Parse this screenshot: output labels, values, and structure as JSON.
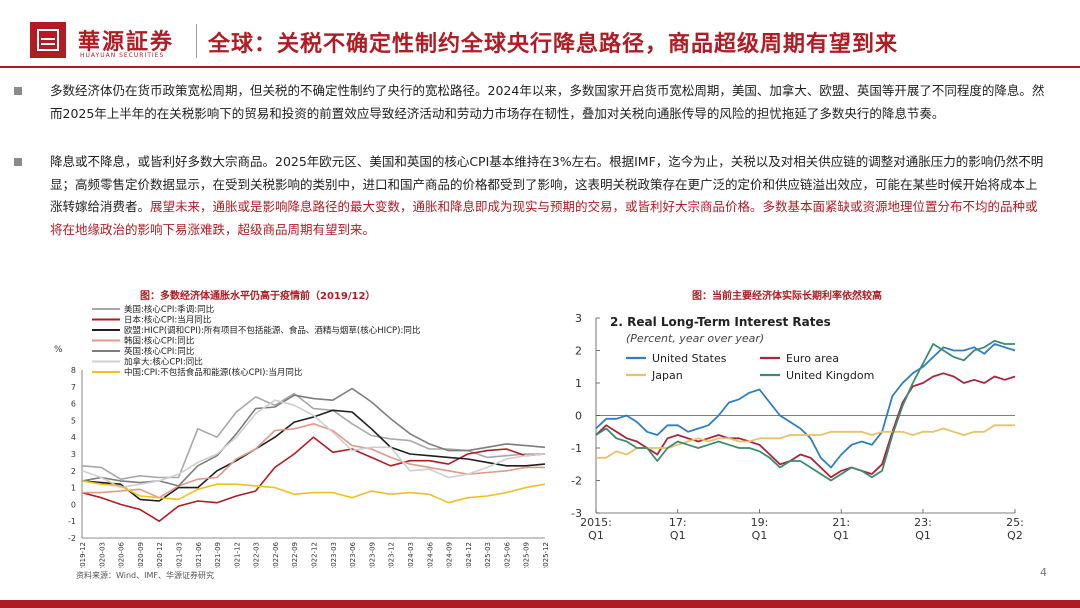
{
  "header": {
    "brand": "華源証券",
    "brand_en": "HUAYUAN SECURITIES",
    "title": "全球：关税不确定性制约全球央行降息路径，商品超级周期有望到来"
  },
  "bullets": [
    {
      "text": "多数经济体仍在货币政策宽松周期，但关税的不确定性制约了央行的宽松路径。2024年以来，多数国家开启货币宽松周期，美国、加拿大、欧盟、英国等开展了不同程度的降息。然而2025年上半年的在关税影响下的贸易和投资的前置效应导致经济活动和劳动力市场存在韧性，叠加对关税向通胀传导的风险的担忧拖延了多数央行的降息节奏。",
      "highlight": ""
    },
    {
      "text": "降息或不降息，或皆利好多数大宗商品。2025年欧元区、美国和英国的核心CPI基本维持在3%左右。根据IMF，迄今为止，关税以及对相关供应链的调整对通胀压力的影响仍然不明显；高频零售定价数据显示，在受到关税影响的类别中，进口和国产商品的价格都受到了影响，这表明关税政策存在更广泛的定价和供应链溢出效应，可能在某些时候开始将成本上涨转嫁给消费者。",
      "highlight": "展望未来，通胀或是影响降息路径的最大变数，通胀和降息即成为现实与预期的交易，或皆利好大宗商品价格。多数基本面紧缺或资源地理位置分布不均的品种或将在地缘政治的影响下易涨难跌，超级商品周期有望到来。"
    }
  ],
  "chart1_title": "图：多数经济体通胀水平仍高于疫情前（2019/12）",
  "chart2_title": "图：当前主要经济体实际长期利率依然较高",
  "source": "资料来源：Wind、IMF、华源证券研究",
  "page_number": "4",
  "chart_data": [
    {
      "type": "line",
      "title": "多数经济体通胀水平仍高于疫情前（2019/12）",
      "ylabel": "%",
      "ylim": [
        -2,
        8
      ],
      "yticks": [
        "-2",
        "-1",
        "0",
        "1",
        "2",
        "3",
        "4",
        "5",
        "6",
        "7",
        "8"
      ],
      "xticks": [
        "2019-12",
        "2020-03",
        "2020-06",
        "2020-09",
        "2020-12",
        "2021-03",
        "2021-06",
        "2021-09",
        "2021-12",
        "2022-03",
        "2022-06",
        "2022-09",
        "2022-12",
        "2023-03",
        "2023-06",
        "2023-09",
        "2023-12",
        "2024-03",
        "2024-06",
        "2024-09",
        "2024-12",
        "2025-03",
        "2025-06",
        "2025-09",
        "2025-12"
      ],
      "legend_position": "top-left",
      "series": [
        {
          "name": "美国:核心CPI:季调:同比",
          "color": "#a8a8a8",
          "values": [
            2.3,
            2.2,
            1.5,
            1.7,
            1.6,
            1.6,
            4.5,
            4.0,
            5.5,
            6.4,
            5.9,
            6.6,
            5.7,
            5.6,
            4.8,
            4.1,
            3.9,
            3.8,
            3.3,
            3.3,
            3.2,
            2.8,
            2.9,
            3.0,
            3.0
          ]
        },
        {
          "name": "日本:核心CPI:当月同比",
          "color": "#b01c24",
          "values": [
            0.7,
            0.4,
            0.0,
            -0.3,
            -1.0,
            -0.1,
            0.2,
            0.1,
            0.5,
            0.8,
            2.2,
            3.0,
            4.0,
            3.1,
            3.3,
            2.8,
            2.3,
            2.6,
            2.6,
            2.4,
            3.0,
            3.2,
            3.3,
            2.9,
            3.0
          ]
        },
        {
          "name": "欧盟:HICP(调和CPI):所有项目不包括能源、食品、酒精与烟草(核心HICP):同比",
          "color": "#1f1f1f",
          "values": [
            1.4,
            1.3,
            1.2,
            0.3,
            0.2,
            1.0,
            1.0,
            2.0,
            2.6,
            3.3,
            4.0,
            4.9,
            5.2,
            5.6,
            5.5,
            4.5,
            3.4,
            3.0,
            2.9,
            2.8,
            2.7,
            2.5,
            2.3,
            2.3,
            2.4
          ]
        },
        {
          "name": "韩国:核心CPI:同比",
          "color": "#e09a8a",
          "values": [
            0.7,
            0.7,
            0.8,
            0.9,
            0.4,
            1.1,
            1.5,
            1.6,
            2.7,
            3.3,
            4.4,
            4.5,
            4.8,
            4.4,
            3.5,
            3.3,
            2.8,
            2.4,
            2.2,
            2.0,
            1.8,
            1.9,
            2.0,
            2.2,
            2.2
          ]
        },
        {
          "name": "英国:核心CPI:同比",
          "color": "#7d7d7d",
          "values": [
            1.4,
            1.6,
            1.4,
            1.3,
            1.4,
            1.1,
            2.3,
            2.9,
            4.2,
            5.7,
            5.8,
            6.5,
            6.3,
            6.2,
            6.9,
            6.1,
            5.1,
            4.2,
            3.6,
            3.2,
            3.2,
            3.4,
            3.6,
            3.5,
            3.4
          ]
        },
        {
          "name": "加拿大:核心CPI:同比",
          "color": "#cfcfcf",
          "values": [
            2.0,
            1.6,
            1.0,
            1.2,
            1.4,
            1.8,
            2.5,
            3.0,
            4.0,
            5.4,
            6.2,
            5.9,
            5.3,
            4.3,
            3.2,
            3.4,
            3.4,
            2.0,
            2.1,
            1.6,
            1.8,
            2.2,
            2.7,
            2.9,
            3.0
          ]
        },
        {
          "name": "中国:CPI:不包括食品和能源(核心CPI):当月同比",
          "color": "#f0c020",
          "values": [
            1.4,
            1.2,
            1.1,
            0.5,
            0.4,
            0.3,
            0.9,
            1.2,
            1.2,
            1.1,
            1.0,
            0.6,
            0.7,
            0.7,
            0.4,
            0.8,
            0.6,
            0.7,
            0.6,
            0.1,
            0.4,
            0.5,
            0.7,
            1.0,
            1.2
          ]
        }
      ]
    },
    {
      "type": "line",
      "title": "2. Real Long-Term Interest Rates",
      "subtitle": "(Percent, year over year)",
      "ylim": [
        -3,
        3
      ],
      "yticks": [
        "-3",
        "-2",
        "-1",
        "0",
        "1",
        "2",
        "3"
      ],
      "xticks": [
        "2015:\nQ1",
        "17:\nQ1",
        "19:\nQ1",
        "21:\nQ1",
        "23:\nQ1",
        "25:\nQ2"
      ],
      "x": [
        "2015Q1",
        "2015Q2",
        "2015Q3",
        "2015Q4",
        "2016Q1",
        "2016Q2",
        "2016Q3",
        "2016Q4",
        "2017Q1",
        "2017Q2",
        "2017Q3",
        "2017Q4",
        "2018Q1",
        "2018Q2",
        "2018Q3",
        "2018Q4",
        "2019Q1",
        "2019Q2",
        "2019Q3",
        "2019Q4",
        "2020Q1",
        "2020Q2",
        "2020Q3",
        "2020Q4",
        "2021Q1",
        "2021Q2",
        "2021Q3",
        "2021Q4",
        "2022Q1",
        "2022Q2",
        "2022Q3",
        "2022Q4",
        "2023Q1",
        "2023Q2",
        "2023Q3",
        "2023Q4",
        "2024Q1",
        "2024Q2",
        "2024Q3",
        "2024Q4",
        "2025Q1",
        "2025Q2"
      ],
      "series": [
        {
          "name": "United States",
          "color": "#2d7ec4",
          "values": [
            -0.4,
            -0.1,
            -0.1,
            0.0,
            -0.2,
            -0.5,
            -0.6,
            -0.3,
            -0.3,
            -0.5,
            -0.4,
            -0.3,
            0.0,
            0.4,
            0.5,
            0.7,
            0.8,
            0.4,
            0.0,
            -0.2,
            -0.4,
            -0.7,
            -1.3,
            -1.6,
            -1.2,
            -0.9,
            -0.8,
            -0.9,
            -0.5,
            0.6,
            1.0,
            1.3,
            1.5,
            1.8,
            2.1,
            2.0,
            2.0,
            2.1,
            1.9,
            2.2,
            2.1,
            2.0
          ]
        },
        {
          "name": "Euro area",
          "color": "#a8263a",
          "values": [
            -0.6,
            -0.3,
            -0.5,
            -0.7,
            -0.8,
            -1.0,
            -1.2,
            -0.7,
            -0.6,
            -0.7,
            -0.8,
            -0.7,
            -0.6,
            -0.7,
            -0.7,
            -0.8,
            -0.9,
            -1.2,
            -1.5,
            -1.4,
            -1.2,
            -1.3,
            -1.6,
            -1.9,
            -1.7,
            -1.6,
            -1.7,
            -1.8,
            -1.5,
            -0.5,
            0.4,
            0.9,
            1.0,
            1.2,
            1.3,
            1.2,
            1.0,
            1.1,
            1.0,
            1.2,
            1.1,
            1.2
          ]
        },
        {
          "name": "Japan",
          "color": "#e8c268",
          "values": [
            -1.3,
            -1.3,
            -1.1,
            -1.2,
            -1.0,
            -1.0,
            -1.0,
            -1.0,
            -0.9,
            -0.8,
            -0.7,
            -0.8,
            -0.7,
            -0.7,
            -0.8,
            -0.8,
            -0.7,
            -0.7,
            -0.7,
            -0.6,
            -0.6,
            -0.6,
            -0.6,
            -0.5,
            -0.5,
            -0.5,
            -0.5,
            -0.6,
            -0.5,
            -0.5,
            -0.5,
            -0.6,
            -0.5,
            -0.5,
            -0.4,
            -0.5,
            -0.6,
            -0.5,
            -0.5,
            -0.3,
            -0.3,
            -0.3
          ]
        },
        {
          "name": "United Kingdom",
          "color": "#3c8c6e",
          "values": [
            -0.6,
            -0.4,
            -0.7,
            -0.8,
            -1.0,
            -1.0,
            -1.4,
            -1.0,
            -0.8,
            -0.9,
            -1.0,
            -0.9,
            -0.8,
            -0.9,
            -1.0,
            -1.0,
            -1.1,
            -1.3,
            -1.6,
            -1.4,
            -1.4,
            -1.6,
            -1.8,
            -2.0,
            -1.8,
            -1.6,
            -1.7,
            -1.9,
            -1.7,
            -0.6,
            0.3,
            1.0,
            1.6,
            2.2,
            2.0,
            1.8,
            1.7,
            2.0,
            2.1,
            2.3,
            2.2,
            2.2
          ]
        }
      ]
    }
  ]
}
